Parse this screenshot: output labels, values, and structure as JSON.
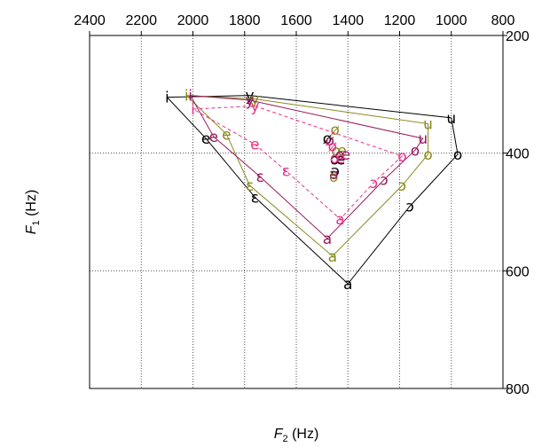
{
  "chart_data": {
    "type": "scatter",
    "xlabel": {
      "main": "F",
      "sub": "2",
      "unit": " (Hz)"
    },
    "ylabel": {
      "main": "F",
      "sub": "1",
      "unit": " (Hz)"
    },
    "xlim": [
      2400,
      800
    ],
    "ylim": [
      200,
      800
    ],
    "x_ticks": [
      2400,
      2200,
      2000,
      1800,
      1600,
      1400,
      1200,
      1000,
      800
    ],
    "y_ticks": [
      200,
      400,
      600,
      800
    ],
    "x_grid": [
      2200,
      2000,
      1800,
      1600,
      1400,
      1200,
      1000
    ],
    "y_grid": [
      400,
      600
    ],
    "grid": true,
    "series": [
      {
        "color": "#000000",
        "dash": false,
        "points": [
          {
            "v": "i",
            "x": 2100,
            "y": 305
          },
          {
            "v": "y",
            "x": 1780,
            "y": 302
          },
          {
            "v": "u",
            "x": 1000,
            "y": 340
          },
          {
            "v": "e",
            "x": 1950,
            "y": 375
          },
          {
            "v": "o",
            "x": 975,
            "y": 402
          },
          {
            "v": "ɛ",
            "x": 1760,
            "y": 475
          },
          {
            "v": "ɔ",
            "x": 1160,
            "y": 490
          },
          {
            "v": "a",
            "x": 1400,
            "y": 622
          },
          {
            "v": "ø",
            "x": 1480,
            "y": 375
          },
          {
            "v": "œ",
            "x": 1440,
            "y": 410
          },
          {
            "v": "ə",
            "x": 1450,
            "y": 430
          }
        ],
        "outline": [
          "i",
          "y",
          "u",
          "o",
          "ɔ",
          "a",
          "ɛ",
          "e",
          "i"
        ]
      },
      {
        "color": "#8a8a1e",
        "dash": false,
        "points": [
          {
            "v": "i",
            "x": 2025,
            "y": 302
          },
          {
            "v": "y",
            "x": 1760,
            "y": 308
          },
          {
            "v": "u",
            "x": 1090,
            "y": 350
          },
          {
            "v": "e",
            "x": 1870,
            "y": 368
          },
          {
            "v": "o",
            "x": 1090,
            "y": 402
          },
          {
            "v": "ɛ",
            "x": 1780,
            "y": 455
          },
          {
            "v": "ɔ",
            "x": 1190,
            "y": 455
          },
          {
            "v": "a",
            "x": 1460,
            "y": 575
          },
          {
            "v": "ø",
            "x": 1450,
            "y": 360
          },
          {
            "v": "œ",
            "x": 1435,
            "y": 395
          },
          {
            "v": "ə",
            "x": 1455,
            "y": 440
          }
        ],
        "outline": [
          "i",
          "y",
          "u",
          "o",
          "ɔ",
          "a",
          "ɛ",
          "e",
          "i"
        ]
      },
      {
        "color": "#9a1a5e",
        "dash": false,
        "points": [
          {
            "v": "i",
            "x": 2010,
            "y": 302
          },
          {
            "v": "y",
            "x": 1780,
            "y": 310
          },
          {
            "v": "u",
            "x": 1110,
            "y": 375
          },
          {
            "v": "e",
            "x": 1920,
            "y": 372
          },
          {
            "v": "o",
            "x": 1140,
            "y": 395
          },
          {
            "v": "ɛ",
            "x": 1740,
            "y": 440
          },
          {
            "v": "ɔ",
            "x": 1260,
            "y": 445
          },
          {
            "v": "a",
            "x": 1480,
            "y": 545
          },
          {
            "v": "ø",
            "x": 1470,
            "y": 378
          },
          {
            "v": "œ",
            "x": 1420,
            "y": 402
          },
          {
            "v": "ə",
            "x": 1455,
            "y": 435
          }
        ],
        "outline": [
          "i",
          "y",
          "u",
          "o",
          "ɔ",
          "a",
          "ɛ",
          "e",
          "i"
        ]
      },
      {
        "color": "#e8318a",
        "dash": true,
        "points": [
          {
            "v": "i",
            "x": 2000,
            "y": 325
          },
          {
            "v": "y",
            "x": 1760,
            "y": 320
          },
          {
            "v": "e",
            "x": 1760,
            "y": 385
          },
          {
            "v": "o",
            "x": 1190,
            "y": 405
          },
          {
            "v": "ɛ",
            "x": 1640,
            "y": 430
          },
          {
            "v": "ɔ",
            "x": 1300,
            "y": 450
          },
          {
            "v": "a",
            "x": 1430,
            "y": 512
          },
          {
            "v": "ø",
            "x": 1460,
            "y": 388
          },
          {
            "v": "œ",
            "x": 1440,
            "y": 408
          }
        ],
        "outline": [
          "i",
          "y",
          "o",
          "ɔ",
          "a",
          "ɛ",
          "e",
          "i"
        ]
      }
    ]
  }
}
